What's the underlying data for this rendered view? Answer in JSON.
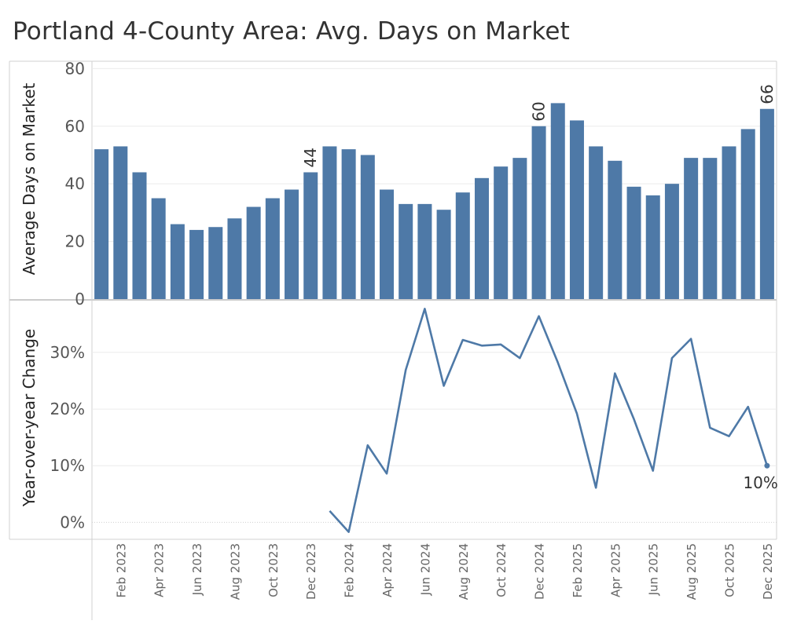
{
  "title": "Portland 4-County Area: Avg. Days on Market",
  "colors": {
    "bar": "#4e79a7",
    "line": "#4e79a7",
    "grid": "#ebebeb",
    "border": "#d0d0d0"
  },
  "chart_data": [
    {
      "type": "bar",
      "title": "Portland 4-County Area: Avg. Days on Market",
      "ylabel": "Average Days on Market",
      "ylim": [
        0,
        82
      ],
      "yticks": [
        0,
        20,
        40,
        60,
        80
      ],
      "categories": [
        "Jan 2023",
        "Feb 2023",
        "Mar 2023",
        "Apr 2023",
        "May 2023",
        "Jun 2023",
        "Jul 2023",
        "Aug 2023",
        "Sep 2023",
        "Oct 2023",
        "Nov 2023",
        "Dec 2023",
        "Jan 2024",
        "Feb 2024",
        "Mar 2024",
        "Apr 2024",
        "May 2024",
        "Jun 2024",
        "Jul 2024",
        "Aug 2024",
        "Sep 2024",
        "Oct 2024",
        "Nov 2024",
        "Dec 2024",
        "Jan 2025",
        "Feb 2025",
        "Mar 2025",
        "Apr 2025",
        "May 2025",
        "Jun 2025",
        "Jul 2025",
        "Aug 2025",
        "Sep 2025",
        "Oct 2025",
        "Nov 2025",
        "Dec 2025"
      ],
      "values": [
        52,
        53,
        44,
        35,
        26,
        24,
        25,
        28,
        32,
        35,
        38,
        44,
        53,
        52,
        50,
        38,
        33,
        33,
        31,
        37,
        42,
        46,
        49,
        60,
        68,
        62,
        53,
        48,
        39,
        36,
        40,
        49,
        49,
        53,
        59,
        66
      ],
      "data_labels": [
        {
          "category": "Dec 2023",
          "text": "44"
        },
        {
          "category": "Dec 2024",
          "text": "60"
        },
        {
          "category": "Dec 2025",
          "text": "66"
        }
      ]
    },
    {
      "type": "line",
      "ylabel": "Year-over-year Change",
      "ylim": [
        -3,
        39
      ],
      "yticks": [
        0,
        10,
        20,
        30
      ],
      "ytick_labels": [
        "0%",
        "10%",
        "20%",
        "30%"
      ],
      "categories": [
        "Jan 2024",
        "Feb 2024",
        "Mar 2024",
        "Apr 2024",
        "May 2024",
        "Jun 2024",
        "Jul 2024",
        "Aug 2024",
        "Sep 2024",
        "Oct 2024",
        "Nov 2024",
        "Dec 2024",
        "Jan 2025",
        "Feb 2025",
        "Mar 2025",
        "Apr 2025",
        "May 2025",
        "Jun 2025",
        "Jul 2025",
        "Aug 2025",
        "Sep 2025",
        "Oct 2025",
        "Nov 2025",
        "Dec 2025"
      ],
      "values": [
        2,
        -1.7,
        13.6,
        8.6,
        26.9,
        37.7,
        24.1,
        32.2,
        31.2,
        31.4,
        29,
        36.4,
        28.2,
        19.2,
        6.1,
        26.3,
        18.2,
        9.1,
        29,
        32.4,
        16.7,
        15.2,
        20.4,
        10
      ],
      "end_label": "10%"
    }
  ],
  "x_axis": {
    "tick_labels": [
      "Feb 2023",
      "Apr 2023",
      "Jun 2023",
      "Aug 2023",
      "Oct 2023",
      "Dec 2023",
      "Feb 2024",
      "Apr 2024",
      "Jun 2024",
      "Aug 2024",
      "Oct 2024",
      "Dec 2024",
      "Feb 2025",
      "Apr 2025",
      "Jun 2025",
      "Aug 2025",
      "Oct 2025",
      "Dec 2025"
    ]
  }
}
